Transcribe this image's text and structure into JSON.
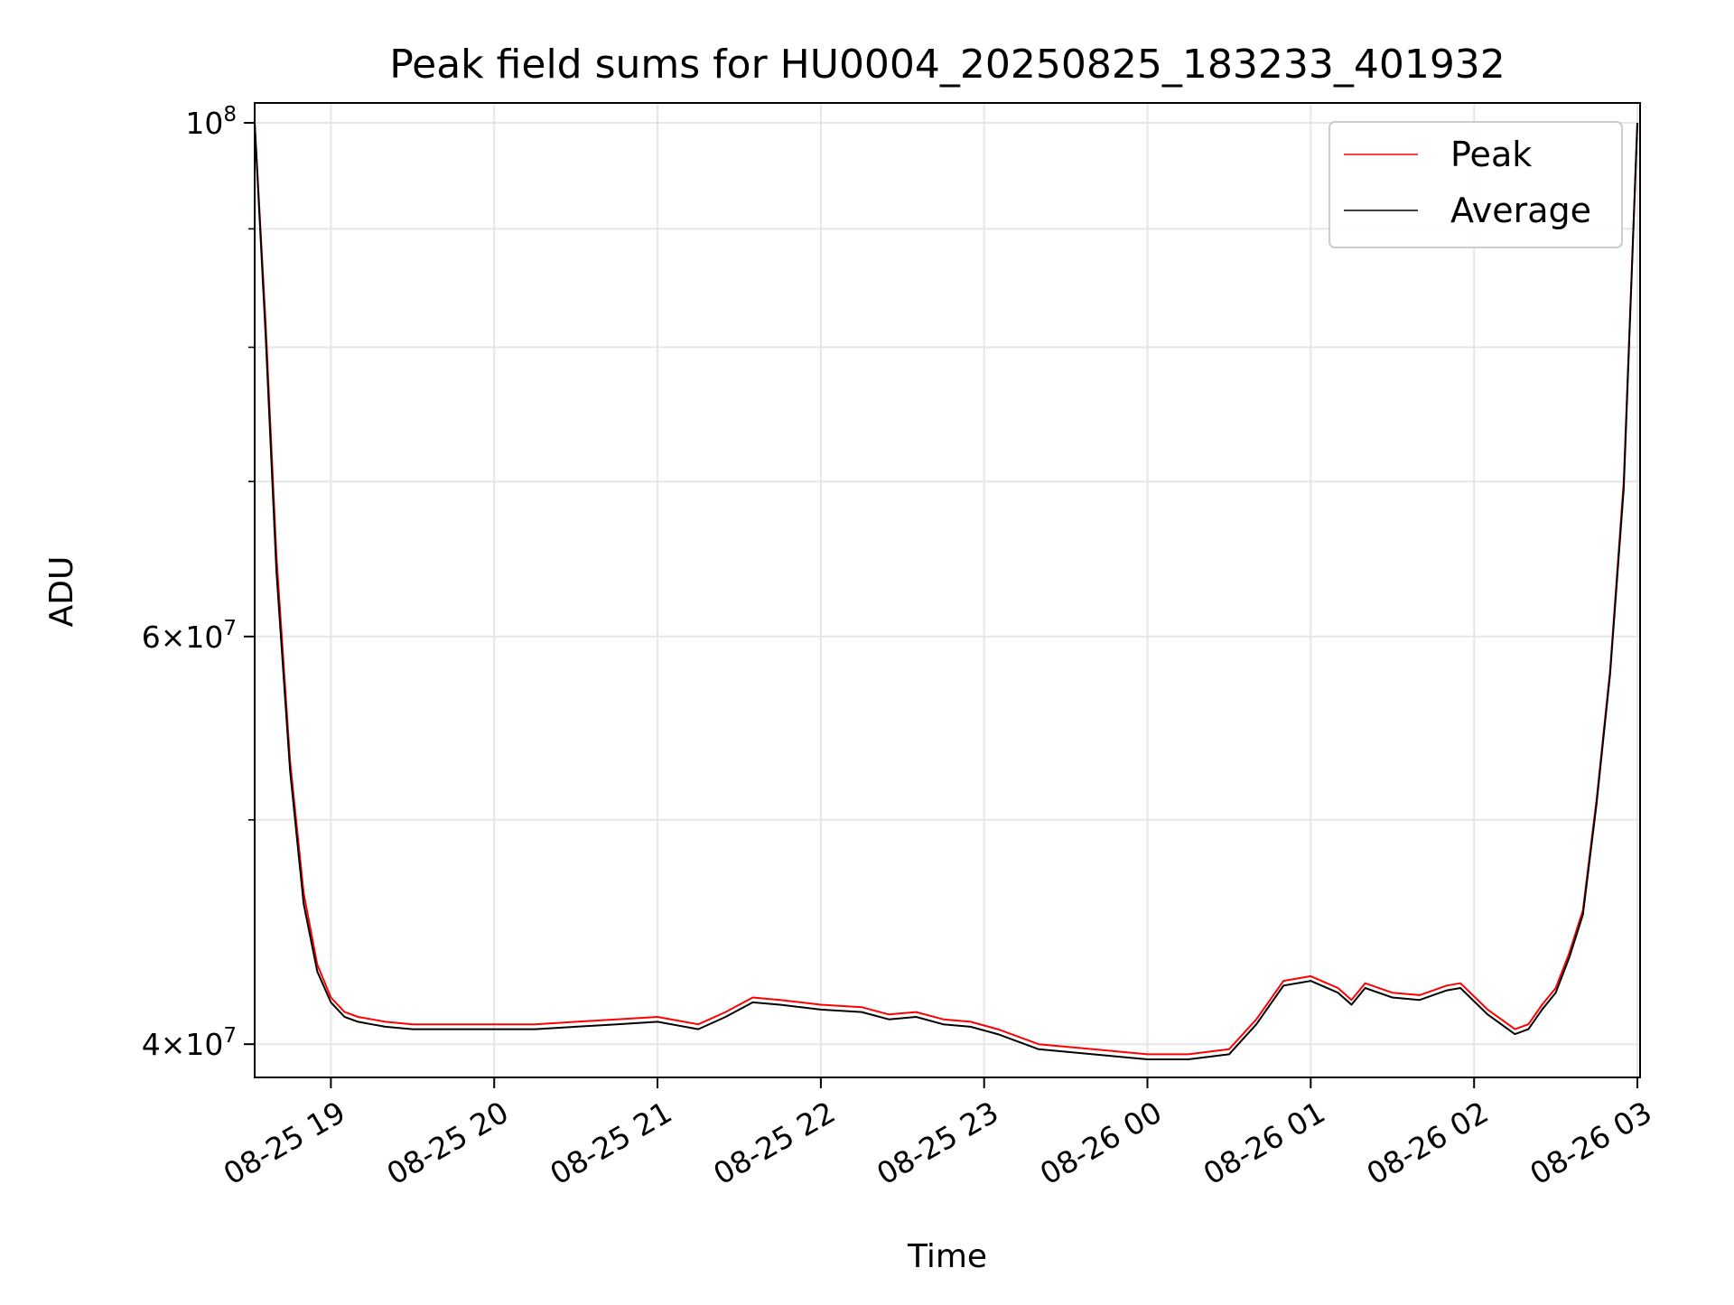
{
  "chart_data": {
    "type": "line",
    "title": "Peak field sums for HU0004_20250825_183233_401932",
    "xlabel": "Time",
    "ylabel": "ADU",
    "yscale": "log",
    "grid": true,
    "legend_position": "top-right",
    "x_ticks": [
      {
        "value": "2025-08-25 19:00",
        "label": "08-25 19"
      },
      {
        "value": "2025-08-25 20:00",
        "label": "08-25 20"
      },
      {
        "value": "2025-08-25 21:00",
        "label": "08-25 21"
      },
      {
        "value": "2025-08-25 22:00",
        "label": "08-25 22"
      },
      {
        "value": "2025-08-25 23:00",
        "label": "08-25 23"
      },
      {
        "value": "2025-08-26 00:00",
        "label": "08-26 00"
      },
      {
        "value": "2025-08-26 01:00",
        "label": "08-26 01"
      },
      {
        "value": "2025-08-26 02:00",
        "label": "08-26 02"
      },
      {
        "value": "2025-08-26 03:00",
        "label": "08-26 03"
      }
    ],
    "y_ticks": [
      {
        "value": 40000000,
        "base": "4",
        "exp": "7"
      },
      {
        "value": 60000000,
        "base": "6",
        "exp": "7"
      },
      {
        "value": 100000000,
        "base": "10",
        "exp": "8"
      }
    ],
    "xlim": [
      "2025-08-25 18:32",
      "2025-08-26 03:01"
    ],
    "ylim": [
      38700000,
      102000000
    ],
    "series": [
      {
        "name": "Peak",
        "color": "#ff0000",
        "x": [
          "2025-08-25 18:32",
          "2025-08-25 18:36",
          "2025-08-25 18:40",
          "2025-08-25 18:45",
          "2025-08-25 18:50",
          "2025-08-25 18:55",
          "2025-08-25 19:00",
          "2025-08-25 19:05",
          "2025-08-25 19:10",
          "2025-08-25 19:15",
          "2025-08-25 19:20",
          "2025-08-25 19:30",
          "2025-08-25 19:40",
          "2025-08-25 19:50",
          "2025-08-25 20:00",
          "2025-08-25 20:15",
          "2025-08-25 20:30",
          "2025-08-25 20:45",
          "2025-08-25 21:00",
          "2025-08-25 21:15",
          "2025-08-25 21:25",
          "2025-08-25 21:35",
          "2025-08-25 21:45",
          "2025-08-25 22:00",
          "2025-08-25 22:15",
          "2025-08-25 22:25",
          "2025-08-25 22:35",
          "2025-08-25 22:45",
          "2025-08-25 22:55",
          "2025-08-25 23:05",
          "2025-08-25 23:20",
          "2025-08-25 23:40",
          "2025-08-26 00:00",
          "2025-08-26 00:15",
          "2025-08-26 00:30",
          "2025-08-26 00:40",
          "2025-08-26 00:50",
          "2025-08-26 01:00",
          "2025-08-26 01:10",
          "2025-08-26 01:15",
          "2025-08-26 01:20",
          "2025-08-26 01:30",
          "2025-08-26 01:40",
          "2025-08-26 01:50",
          "2025-08-26 01:55",
          "2025-08-26 02:05",
          "2025-08-26 02:10",
          "2025-08-26 02:15",
          "2025-08-26 02:20",
          "2025-08-26 02:25",
          "2025-08-26 02:30",
          "2025-08-26 02:35",
          "2025-08-26 02:40",
          "2025-08-26 02:45",
          "2025-08-26 02:50",
          "2025-08-26 02:55",
          "2025-08-26 03:00"
        ],
        "values": [
          100000000,
          82000000,
          65000000,
          53000000,
          46500000,
          43300000,
          41900000,
          41300000,
          41100000,
          41000000,
          40900000,
          40800000,
          40800000,
          40800000,
          40800000,
          40800000,
          40900000,
          41000000,
          41100000,
          40800000,
          41300000,
          41900000,
          41800000,
          41600000,
          41500000,
          41200000,
          41300000,
          41000000,
          40900000,
          40600000,
          40000000,
          39800000,
          39600000,
          39600000,
          39800000,
          41000000,
          42600000,
          42800000,
          42300000,
          41800000,
          42500000,
          42100000,
          42000000,
          42400000,
          42500000,
          41400000,
          41000000,
          40600000,
          40800000,
          41600000,
          42300000,
          43800000,
          45700000,
          51000000,
          58000000,
          70000000,
          100000000
        ]
      },
      {
        "name": "Average",
        "color": "#000000",
        "x": [
          "2025-08-25 18:32",
          "2025-08-25 18:36",
          "2025-08-25 18:40",
          "2025-08-25 18:45",
          "2025-08-25 18:50",
          "2025-08-25 18:55",
          "2025-08-25 19:00",
          "2025-08-25 19:05",
          "2025-08-25 19:10",
          "2025-08-25 19:15",
          "2025-08-25 19:20",
          "2025-08-25 19:30",
          "2025-08-25 19:40",
          "2025-08-25 19:50",
          "2025-08-25 20:00",
          "2025-08-25 20:15",
          "2025-08-25 20:30",
          "2025-08-25 20:45",
          "2025-08-25 21:00",
          "2025-08-25 21:15",
          "2025-08-25 21:25",
          "2025-08-25 21:35",
          "2025-08-25 21:45",
          "2025-08-25 22:00",
          "2025-08-25 22:15",
          "2025-08-25 22:25",
          "2025-08-25 22:35",
          "2025-08-25 22:45",
          "2025-08-25 22:55",
          "2025-08-25 23:05",
          "2025-08-25 23:20",
          "2025-08-25 23:40",
          "2025-08-26 00:00",
          "2025-08-26 00:15",
          "2025-08-26 00:30",
          "2025-08-26 00:40",
          "2025-08-26 00:50",
          "2025-08-26 01:00",
          "2025-08-26 01:10",
          "2025-08-26 01:15",
          "2025-08-26 01:20",
          "2025-08-26 01:30",
          "2025-08-26 01:40",
          "2025-08-26 01:50",
          "2025-08-26 01:55",
          "2025-08-26 02:05",
          "2025-08-26 02:10",
          "2025-08-26 02:15",
          "2025-08-26 02:20",
          "2025-08-26 02:25",
          "2025-08-26 02:30",
          "2025-08-26 02:35",
          "2025-08-26 02:40",
          "2025-08-26 02:45",
          "2025-08-26 02:50",
          "2025-08-26 02:55",
          "2025-08-26 03:00"
        ],
        "values": [
          100000000,
          81000000,
          64000000,
          52500000,
          46000000,
          43000000,
          41700000,
          41100000,
          40900000,
          40800000,
          40700000,
          40600000,
          40600000,
          40600000,
          40600000,
          40600000,
          40700000,
          40800000,
          40900000,
          40600000,
          41100000,
          41700000,
          41600000,
          41400000,
          41300000,
          41000000,
          41100000,
          40800000,
          40700000,
          40400000,
          39800000,
          39600000,
          39400000,
          39400000,
          39600000,
          40800000,
          42400000,
          42600000,
          42100000,
          41600000,
          42300000,
          41900000,
          41800000,
          42200000,
          42300000,
          41200000,
          40800000,
          40400000,
          40600000,
          41400000,
          42100000,
          43600000,
          45500000,
          50800000,
          57800000,
          69500000,
          100000000
        ]
      }
    ]
  }
}
